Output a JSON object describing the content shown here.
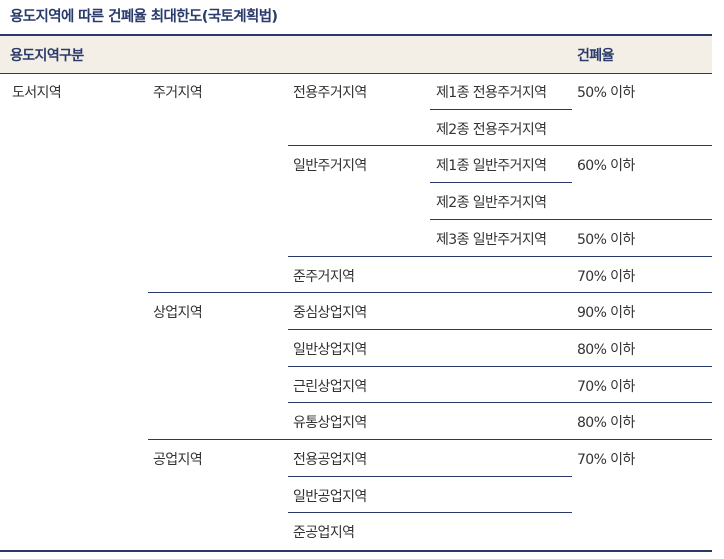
{
  "title": "용도지역에 따른 건폐율 최대한도(국토계획법)",
  "header": {
    "zone_col": "용도지역구분",
    "rate_col": "건폐율"
  },
  "rows": [
    {
      "c1": "도서지역",
      "c2": "주거지역",
      "c3": "전용주거지역",
      "c4": "제1종 전용주거지역",
      "rate": "50% 이하"
    },
    {
      "c1": "",
      "c2": "",
      "c3": "",
      "c4": "제2종 전용주거지역",
      "rate": ""
    },
    {
      "c1": "",
      "c2": "",
      "c3": "일반주거지역",
      "c4": "제1종 일반주거지역",
      "rate": "60% 이하"
    },
    {
      "c1": "",
      "c2": "",
      "c3": "",
      "c4": "제2종 일반주거지역",
      "rate": ""
    },
    {
      "c1": "",
      "c2": "",
      "c3": "",
      "c4": "제3종 일반주거지역",
      "rate": "50% 이하"
    },
    {
      "c1": "",
      "c2": "",
      "c3": "준주거지역",
      "c4": "",
      "rate": "70% 이하"
    },
    {
      "c1": "",
      "c2": "상업지역",
      "c3": "중심상업지역",
      "c4": "",
      "rate": "90% 이하"
    },
    {
      "c1": "",
      "c2": "",
      "c3": "일반상업지역",
      "c4": "",
      "rate": "80% 이하"
    },
    {
      "c1": "",
      "c2": "",
      "c3": "근린상업지역",
      "c4": "",
      "rate": "70% 이하"
    },
    {
      "c1": "",
      "c2": "",
      "c3": "유통상업지역",
      "c4": "",
      "rate": "80% 이하"
    },
    {
      "c1": "",
      "c2": "공업지역",
      "c3": "전용공업지역",
      "c4": "",
      "rate": "70% 이하"
    },
    {
      "c1": "",
      "c2": "",
      "c3": "일반공업지역",
      "c4": "",
      "rate": ""
    },
    {
      "c1": "",
      "c2": "",
      "c3": "준공업지역",
      "c4": "",
      "rate": ""
    }
  ]
}
